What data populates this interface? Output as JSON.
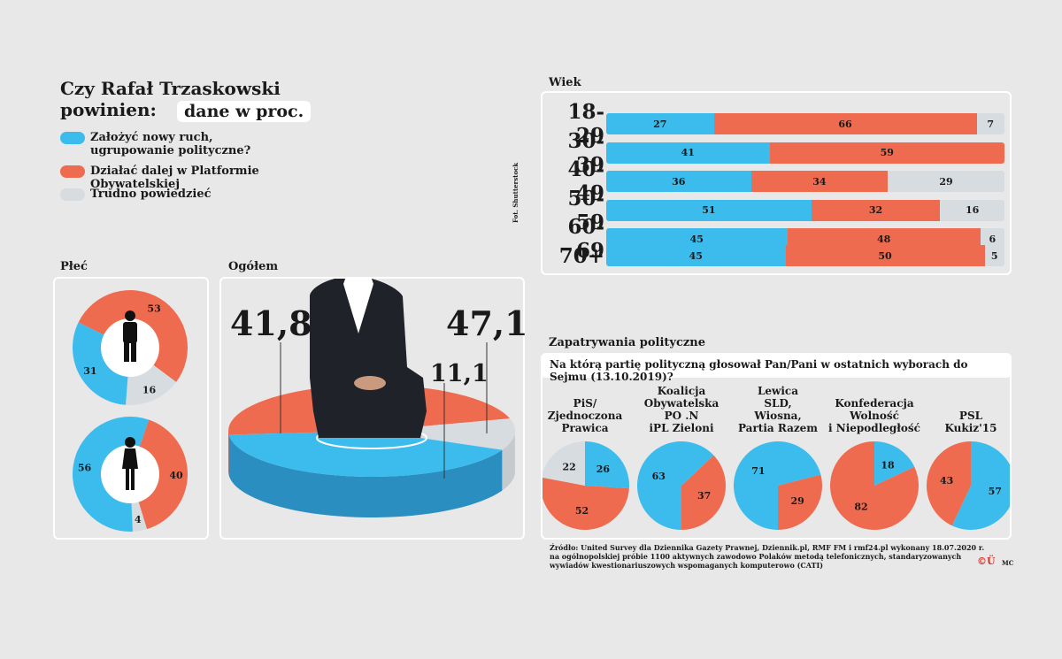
{
  "title_line1": "Czy Rafał Trzaskowski",
  "title_line2": "powinien:",
  "unit": "dane w proc.",
  "colors": {
    "blue": "#3bbced",
    "orange": "#ef6b4f",
    "gray": "#d7dce1"
  },
  "legend": [
    {
      "label": "Założyć nowy ruch, ugrupowanie polityczne?",
      "color": "#3bbced"
    },
    {
      "label": "Działać dalej w Platformie Obywatelskiej",
      "color": "#ef6b4f"
    },
    {
      "label": "Trudno powiedzieć",
      "color": "#d7dce1"
    }
  ],
  "photo_credit": "Fot. Shutterstock",
  "sections": {
    "plec": "Płeć",
    "ogolem": "Ogółem",
    "wiek": "Wiek",
    "zapatrywania": "Zapatrywania polityczne"
  },
  "question": "Na którą partię polityczną głosował Pan/Pani w ostatnich wyborach do Sejmu (13.10.2019)?",
  "source": {
    "line1": "Źródło: United Survey dla Dziennika Gazety Prawnej, Dziennik.pl, RMF FM i rmf24.pl wykonany 18.07.2020 r.",
    "line2": "na ogólnopolskiej próbie 1100 aktywnych zawodowo Polaków metodą telefonicznych, standaryzowanych",
    "line3": "wywiadów kwestionariuszowych wspomaganych komputerowo (CATI)"
  },
  "logo_text": "©Ü",
  "initials": "MC",
  "chart_data": [
    {
      "type": "bar",
      "name": "Wiek",
      "categories": [
        "18-29",
        "30-39",
        "40-49",
        "50-59",
        "60-69",
        "70+"
      ],
      "series": [
        {
          "values": [
            27,
            41,
            36,
            51,
            45,
            45
          ]
        },
        {
          "values": [
            66,
            59,
            34,
            32,
            48,
            50
          ]
        },
        {
          "values": [
            7,
            null,
            29,
            16,
            6,
            5
          ]
        }
      ]
    },
    {
      "type": "pie",
      "name": "Ogółem",
      "values": [
        41.8,
        47.1,
        11.1
      ],
      "labels": [
        "41,8",
        "47,1",
        "11,1"
      ]
    },
    {
      "type": "pie",
      "name": "Płeć – mężczyźni",
      "values": [
        31,
        53,
        16
      ]
    },
    {
      "type": "pie",
      "name": "Płeć – kobiety",
      "values": [
        56,
        40,
        4
      ]
    },
    {
      "type": "pie",
      "name": "Zapatrywania polityczne",
      "groups": [
        {
          "label": [
            "PiS/",
            "Zjednoczona",
            "Prawica"
          ],
          "values": [
            26,
            52,
            22
          ]
        },
        {
          "label": [
            "Koalicja",
            "Obywatelska",
            "PO .N",
            "iPL Zieloni"
          ],
          "values": [
            63,
            37,
            0
          ]
        },
        {
          "label": [
            "Lewica",
            "SLD,",
            "Wiosna,",
            "Partia Razem"
          ],
          "values": [
            71,
            29,
            0
          ]
        },
        {
          "label": [
            "Konfederacja",
            "Wolność",
            "i Niepodległość"
          ],
          "values": [
            18,
            82,
            0
          ]
        },
        {
          "label": [
            "PSL",
            "Kukiz'15"
          ],
          "values": [
            57,
            43,
            0
          ]
        }
      ]
    }
  ]
}
